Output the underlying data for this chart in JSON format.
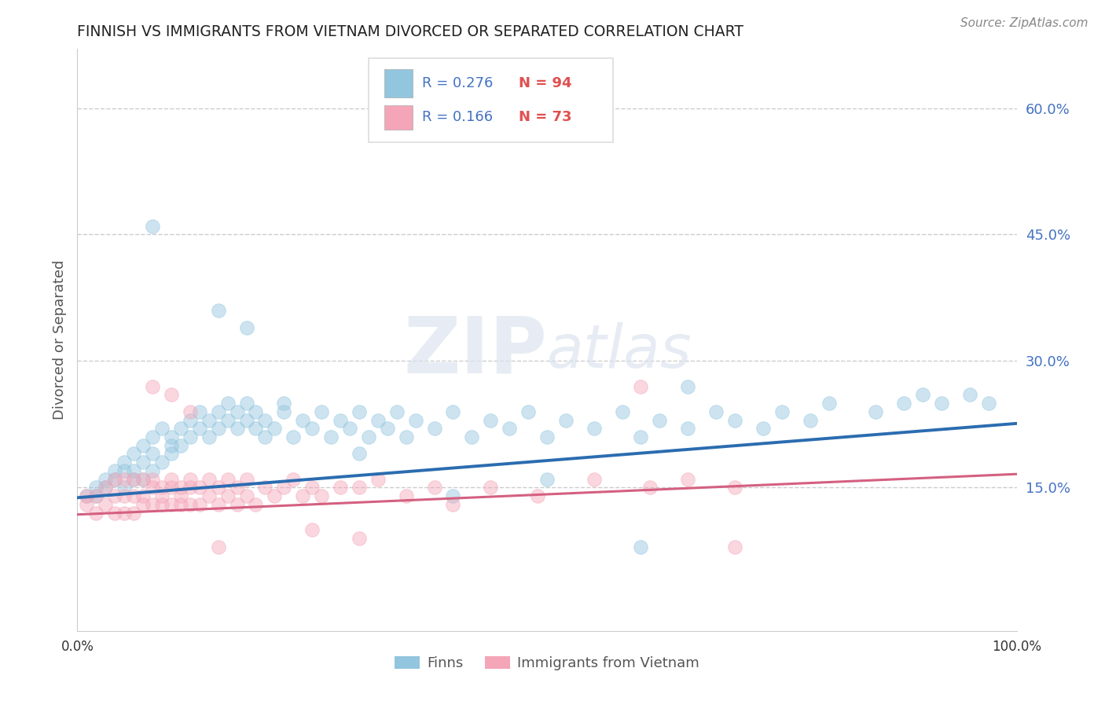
{
  "title": "FINNISH VS IMMIGRANTS FROM VIETNAM DIVORCED OR SEPARATED CORRELATION CHART",
  "source": "Source: ZipAtlas.com",
  "ylabel": "Divorced or Separated",
  "yticks": [
    0.0,
    0.15,
    0.3,
    0.45,
    0.6
  ],
  "ytick_labels": [
    "",
    "15.0%",
    "30.0%",
    "45.0%",
    "60.0%"
  ],
  "xlim": [
    0.0,
    1.0
  ],
  "ylim": [
    -0.02,
    0.67
  ],
  "legend_r_blue": "R = 0.276",
  "legend_n_blue": "N = 94",
  "legend_r_pink": "R = 0.166",
  "legend_n_pink": "N = 73",
  "legend_label_blue": "Finns",
  "legend_label_pink": "Immigrants from Vietnam",
  "blue_color": "#92c5de",
  "pink_color": "#f4a6b8",
  "blue_line_color": "#2b6cb0",
  "pink_line_color": "#d46080",
  "blue_line_y_intercept": 0.138,
  "blue_line_slope": 0.088,
  "pink_line_y_intercept": 0.118,
  "pink_line_slope": 0.048,
  "blue_scatter_x": [
    0.01,
    0.02,
    0.02,
    0.03,
    0.03,
    0.04,
    0.04,
    0.05,
    0.05,
    0.05,
    0.06,
    0.06,
    0.06,
    0.07,
    0.07,
    0.07,
    0.08,
    0.08,
    0.08,
    0.09,
    0.09,
    0.1,
    0.1,
    0.1,
    0.11,
    0.11,
    0.12,
    0.12,
    0.13,
    0.13,
    0.14,
    0.14,
    0.15,
    0.15,
    0.16,
    0.16,
    0.17,
    0.17,
    0.18,
    0.18,
    0.19,
    0.19,
    0.2,
    0.2,
    0.21,
    0.22,
    0.23,
    0.24,
    0.25,
    0.26,
    0.27,
    0.28,
    0.29,
    0.3,
    0.31,
    0.32,
    0.33,
    0.34,
    0.35,
    0.36,
    0.38,
    0.4,
    0.42,
    0.44,
    0.46,
    0.48,
    0.5,
    0.52,
    0.55,
    0.58,
    0.6,
    0.62,
    0.65,
    0.68,
    0.7,
    0.73,
    0.75,
    0.78,
    0.8,
    0.85,
    0.88,
    0.9,
    0.92,
    0.95,
    0.97,
    0.18,
    0.15,
    0.08,
    0.5,
    0.65,
    0.3,
    0.4,
    0.22,
    0.6
  ],
  "blue_scatter_y": [
    0.14,
    0.14,
    0.15,
    0.16,
    0.15,
    0.17,
    0.16,
    0.15,
    0.18,
    0.17,
    0.16,
    0.19,
    0.17,
    0.18,
    0.16,
    0.2,
    0.17,
    0.21,
    0.19,
    0.18,
    0.22,
    0.19,
    0.21,
    0.2,
    0.22,
    0.2,
    0.21,
    0.23,
    0.22,
    0.24,
    0.21,
    0.23,
    0.22,
    0.24,
    0.23,
    0.25,
    0.22,
    0.24,
    0.23,
    0.25,
    0.24,
    0.22,
    0.21,
    0.23,
    0.22,
    0.24,
    0.21,
    0.23,
    0.22,
    0.24,
    0.21,
    0.23,
    0.22,
    0.24,
    0.21,
    0.23,
    0.22,
    0.24,
    0.21,
    0.23,
    0.22,
    0.24,
    0.21,
    0.23,
    0.22,
    0.24,
    0.21,
    0.23,
    0.22,
    0.24,
    0.21,
    0.23,
    0.22,
    0.24,
    0.23,
    0.22,
    0.24,
    0.23,
    0.25,
    0.24,
    0.25,
    0.26,
    0.25,
    0.26,
    0.25,
    0.34,
    0.36,
    0.46,
    0.16,
    0.27,
    0.19,
    0.14,
    0.25,
    0.08
  ],
  "pink_scatter_x": [
    0.01,
    0.01,
    0.02,
    0.02,
    0.03,
    0.03,
    0.04,
    0.04,
    0.04,
    0.05,
    0.05,
    0.05,
    0.06,
    0.06,
    0.06,
    0.07,
    0.07,
    0.07,
    0.08,
    0.08,
    0.08,
    0.09,
    0.09,
    0.09,
    0.1,
    0.1,
    0.1,
    0.11,
    0.11,
    0.11,
    0.12,
    0.12,
    0.12,
    0.13,
    0.13,
    0.14,
    0.14,
    0.15,
    0.15,
    0.16,
    0.16,
    0.17,
    0.17,
    0.18,
    0.18,
    0.19,
    0.2,
    0.21,
    0.22,
    0.23,
    0.24,
    0.25,
    0.26,
    0.28,
    0.3,
    0.32,
    0.35,
    0.38,
    0.4,
    0.44,
    0.49,
    0.55,
    0.61,
    0.65,
    0.7,
    0.08,
    0.1,
    0.12,
    0.6,
    0.7,
    0.25,
    0.3,
    0.15
  ],
  "pink_scatter_y": [
    0.13,
    0.14,
    0.12,
    0.14,
    0.13,
    0.15,
    0.12,
    0.14,
    0.16,
    0.12,
    0.14,
    0.16,
    0.12,
    0.14,
    0.16,
    0.13,
    0.14,
    0.16,
    0.13,
    0.15,
    0.16,
    0.13,
    0.15,
    0.14,
    0.13,
    0.15,
    0.16,
    0.13,
    0.15,
    0.14,
    0.13,
    0.15,
    0.16,
    0.13,
    0.15,
    0.14,
    0.16,
    0.13,
    0.15,
    0.14,
    0.16,
    0.13,
    0.15,
    0.14,
    0.16,
    0.13,
    0.15,
    0.14,
    0.15,
    0.16,
    0.14,
    0.15,
    0.14,
    0.15,
    0.15,
    0.16,
    0.14,
    0.15,
    0.13,
    0.15,
    0.14,
    0.16,
    0.15,
    0.16,
    0.15,
    0.27,
    0.26,
    0.24,
    0.27,
    0.08,
    0.1,
    0.09,
    0.08
  ]
}
